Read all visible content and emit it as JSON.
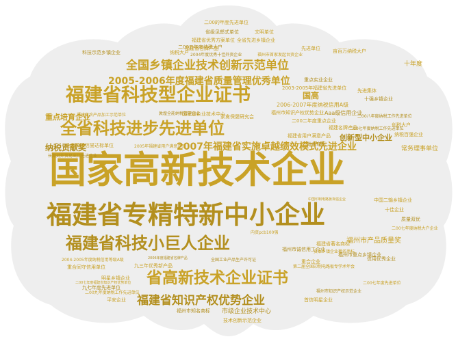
{
  "colors": {
    "background": "#ffffff",
    "shape_fill": "#eeeeee",
    "word": "#c9a227",
    "word_dark": "#b38f1e"
  },
  "words": [
    {
      "text": "国家高新技术企业",
      "size": 54
    },
    {
      "text": "福建省专精特新中小企业",
      "size": 37
    },
    {
      "text": "福建省科技型企业证书",
      "size": 27
    },
    {
      "text": "全省科技进步先进单位",
      "size": 24
    },
    {
      "text": "福建省科技小巨人企业",
      "size": 24
    },
    {
      "text": "省高新技术企业证书",
      "size": 23
    },
    {
      "text": "全国乡镇企业技术创新示范单位",
      "size": 17
    },
    {
      "text": "福建省知识产权优势企业",
      "size": 17
    },
    {
      "text": "2005-2006年度福建省质量管理优秀单位",
      "size": 14
    },
    {
      "text": "2007年福建省实施卓越绩效模式先进企业",
      "size": 14
    },
    {
      "text": "纳税贡献奖",
      "size": 12
    },
    {
      "text": "重点培育企业",
      "size": 11
    },
    {
      "text": "国高",
      "size": 12
    },
    {
      "text": "创新型中小企业",
      "size": 11
    },
    {
      "text": "常务理事单位",
      "size": 9
    },
    {
      "text": "福州市产品质量奖",
      "size": 10
    },
    {
      "text": "市级企业技术中心",
      "size": 9
    },
    {
      "text": "十年度",
      "size": 9
    },
    {
      "text": "二00的年度先进单位",
      "size": 7
    },
    {
      "text": "省级见郎式单位",
      "size": 7
    },
    {
      "text": "文明单位",
      "size": 7
    },
    {
      "text": "福建省优秀方案单位",
      "size": 7
    },
    {
      "text": "二00五年度纳税大户",
      "size": 7
    },
    {
      "text": "全省先进乡镇企业",
      "size": 7
    },
    {
      "text": "纳税大户",
      "size": 7
    },
    {
      "text": "2004年度优秀十佳外资企业",
      "size": 6
    },
    {
      "text": "福建省名牌产品",
      "size": 7
    },
    {
      "text": "先进单位",
      "size": 7
    },
    {
      "text": "科技示范乡镇企业",
      "size": 7
    },
    {
      "text": "福州市首家发起台资企业",
      "size": 6
    },
    {
      "text": "亩百万纳税大户",
      "size": 7
    },
    {
      "text": "重点实业企业",
      "size": 7
    },
    {
      "text": "2003-2005年福建省先进单位",
      "size": 7
    },
    {
      "text": "先进集体",
      "size": 7
    },
    {
      "text": "十强乡镇企业",
      "size": 7
    },
    {
      "text": "2006-2007年度纳税信用A级",
      "size": 8
    },
    {
      "text": "福州市知识产权优势企业",
      "size": 7
    },
    {
      "text": "Aaa级信用企业",
      "size": 8
    },
    {
      "text": "福建省农产品加工示范单位",
      "size": 6
    },
    {
      "text": "二00二年度重点企业",
      "size": 7
    },
    {
      "text": "二00八年度纳税工作先进单位",
      "size": 6
    },
    {
      "text": "国家级企业技术中心",
      "size": 7
    },
    {
      "text": "家禽保健研究会",
      "size": 7
    },
    {
      "text": "敦煌全能纳税管理企业",
      "size": 6
    },
    {
      "text": "创税大户",
      "size": 7
    },
    {
      "text": "福建名牌产品",
      "size": 7
    },
    {
      "text": "二00七年度纳税工作先进单位",
      "size": 6
    },
    {
      "text": "福建省用户满意产品",
      "size": 7
    },
    {
      "text": "纳税百强企业",
      "size": 7
    },
    {
      "text": "驰名商标",
      "size": 7
    },
    {
      "text": "全国质量信誉达标单位",
      "size": 7
    },
    {
      "text": "2005年福建省用户满意产品",
      "size": 6
    },
    {
      "text": "长期对外贸易出口先进企业",
      "size": 6
    },
    {
      "text": "中国二输乡镇企业",
      "size": 7
    },
    {
      "text": "十佳企业",
      "size": 7
    },
    {
      "text": "质量双优",
      "size": 7
    },
    {
      "text": "二00七年度纳税大户企业",
      "size": 6
    },
    {
      "text": "内资pcb100强",
      "size": 6
    },
    {
      "text": "福州市诚信用工企业",
      "size": 7
    },
    {
      "text": "福建省著名商标",
      "size": 7
    },
    {
      "text": "资本乡镇企业著名商标",
      "size": 6
    },
    {
      "text": "福州市重点乡镇企业",
      "size": 7
    },
    {
      "text": "2004-2005年度纳税信用等级A级",
      "size": 6
    },
    {
      "text": "九三年优秀新产品",
      "size": 7
    },
    {
      "text": "全国工业产品生产许可证",
      "size": 6
    },
    {
      "text": "重合企业",
      "size": 7
    },
    {
      "text": "第二届全国印制电路板专学术年会",
      "size": 6
    },
    {
      "text": "信用优秀企业",
      "size": 7
    },
    {
      "text": "重合同守信用单位",
      "size": 7
    },
    {
      "text": "明星乡镇企业",
      "size": 7
    },
    {
      "text": "九七年度先进单位",
      "size": 7
    },
    {
      "text": "二00九年度纳税工作先进单位",
      "size": 6
    },
    {
      "text": "平安企业",
      "size": 7
    },
    {
      "text": "福州市知名商标",
      "size": 7
    },
    {
      "text": "技术创新示范企业",
      "size": 7
    },
    {
      "text": "首信明星企业",
      "size": 7
    },
    {
      "text": "福州市知识产权示范企业",
      "size": 6
    },
    {
      "text": "二00七年度先进单位",
      "size": 6
    },
    {
      "text": "二00七年度福建省知识产权优势单位",
      "size": 5
    },
    {
      "text": "2006年度福建省名牌产品",
      "size": 5
    },
    {
      "text": "中国印制电路板百强企业",
      "size": 5
    }
  ]
}
